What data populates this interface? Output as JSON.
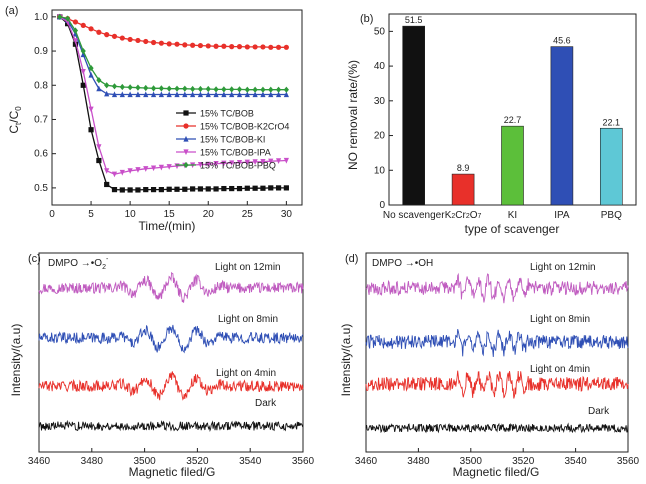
{
  "chart_data": [
    {
      "panel": "(a)",
      "type": "line",
      "xlabel": "Time/(min)",
      "ylabel": "C/C0",
      "ylabel_main": "C",
      "ylabel_sub1": "t",
      "ylabel_mid": "/C",
      "ylabel_sub2": "0",
      "xlim": [
        0,
        32
      ],
      "ylim": [
        0.45,
        1.02
      ],
      "xticks": [
        "0",
        "5",
        "10",
        "15",
        "20",
        "25",
        "30"
      ],
      "yticks": [
        "0.5",
        "0.6",
        "0.7",
        "0.8",
        "0.9",
        "1.0"
      ],
      "series": [
        {
          "name": "15% TC/BOB",
          "color": "#111111",
          "marker": "square",
          "x": [
            1,
            2,
            3,
            4,
            5,
            6,
            7,
            8,
            9,
            10,
            11,
            12,
            13,
            14,
            15,
            16,
            17,
            18,
            19,
            20,
            21,
            22,
            23,
            24,
            25,
            26,
            27,
            28,
            29,
            30
          ],
          "y": [
            1.0,
            0.98,
            0.92,
            0.8,
            0.67,
            0.58,
            0.51,
            0.495,
            0.494,
            0.494,
            0.494,
            0.495,
            0.495,
            0.495,
            0.496,
            0.496,
            0.496,
            0.497,
            0.497,
            0.497,
            0.497,
            0.498,
            0.498,
            0.498,
            0.499,
            0.499,
            0.499,
            0.5,
            0.5,
            0.5
          ]
        },
        {
          "name": "15% TC/BOB-K2CrO4",
          "color": "#e8302a",
          "marker": "circle",
          "x": [
            1,
            2,
            3,
            4,
            5,
            6,
            7,
            8,
            9,
            10,
            11,
            12,
            13,
            14,
            15,
            16,
            17,
            18,
            19,
            20,
            21,
            22,
            23,
            24,
            25,
            26,
            27,
            28,
            29,
            30
          ],
          "y": [
            1.0,
            0.995,
            0.985,
            0.975,
            0.965,
            0.955,
            0.948,
            0.943,
            0.938,
            0.934,
            0.931,
            0.928,
            0.925,
            0.923,
            0.921,
            0.92,
            0.918,
            0.917,
            0.916,
            0.915,
            0.914,
            0.914,
            0.913,
            0.913,
            0.912,
            0.912,
            0.912,
            0.911,
            0.911,
            0.911
          ]
        },
        {
          "name": "15% TC/BOB-KI",
          "color": "#2f4fb5",
          "marker": "triangle-up",
          "x": [
            1,
            2,
            3,
            4,
            5,
            6,
            7,
            8,
            9,
            10,
            11,
            12,
            13,
            14,
            15,
            16,
            17,
            18,
            19,
            20,
            21,
            22,
            23,
            24,
            25,
            26,
            27,
            28,
            29,
            30
          ],
          "y": [
            1.0,
            0.99,
            0.95,
            0.89,
            0.83,
            0.79,
            0.775,
            0.773,
            0.773,
            0.773,
            0.773,
            0.773,
            0.773,
            0.773,
            0.773,
            0.773,
            0.773,
            0.773,
            0.773,
            0.773,
            0.773,
            0.773,
            0.773,
            0.773,
            0.773,
            0.773,
            0.773,
            0.773,
            0.773,
            0.773
          ]
        },
        {
          "name": "15% TC/BOB-IPA",
          "color": "#c94fc9",
          "marker": "triangle-down",
          "x": [
            1,
            2,
            3,
            4,
            5,
            6,
            7,
            8,
            9,
            10,
            11,
            12,
            13,
            14,
            15,
            16,
            17,
            18,
            19,
            20,
            21,
            22,
            23,
            24,
            25,
            26,
            27,
            28,
            29,
            30
          ],
          "y": [
            1.0,
            0.985,
            0.93,
            0.84,
            0.73,
            0.62,
            0.55,
            0.54,
            0.545,
            0.55,
            0.553,
            0.556,
            0.558,
            0.56,
            0.562,
            0.564,
            0.566,
            0.567,
            0.568,
            0.569,
            0.571,
            0.572,
            0.573,
            0.574,
            0.575,
            0.576,
            0.577,
            0.578,
            0.579,
            0.58
          ]
        },
        {
          "name": "15% TC/BOB-PBQ",
          "color": "#2e9a3a",
          "marker": "diamond",
          "x": [
            1,
            2,
            3,
            4,
            5,
            6,
            7,
            8,
            9,
            10,
            11,
            12,
            13,
            14,
            15,
            16,
            17,
            18,
            19,
            20,
            21,
            22,
            23,
            24,
            25,
            26,
            27,
            28,
            29,
            30
          ],
          "y": [
            1.0,
            0.995,
            0.96,
            0.9,
            0.85,
            0.815,
            0.8,
            0.797,
            0.795,
            0.794,
            0.793,
            0.792,
            0.791,
            0.791,
            0.79,
            0.79,
            0.79,
            0.789,
            0.789,
            0.789,
            0.788,
            0.788,
            0.788,
            0.788,
            0.787,
            0.787,
            0.787,
            0.787,
            0.787,
            0.787
          ]
        }
      ]
    },
    {
      "panel": "(b)",
      "type": "bar",
      "ylabel": "NO removal rate/(%)",
      "xlabel": "type of scavenger",
      "ylim": [
        0,
        55
      ],
      "yticks": [
        "0",
        "10",
        "20",
        "30",
        "40",
        "50"
      ],
      "categories": [
        "No scavenger",
        "K2Cr2O7",
        "KI",
        "IPA",
        "PBQ"
      ],
      "values": [
        51.5,
        8.9,
        22.7,
        45.6,
        22.1
      ],
      "value_labels": [
        "51.5",
        "8.9",
        "22.7",
        "45.6",
        "22.1"
      ],
      "colors": [
        "#111111",
        "#e8302a",
        "#5cbf3a",
        "#2f4fb5",
        "#5ec8d6"
      ]
    },
    {
      "panel": "(c)",
      "type": "line",
      "annotation": "DMPO →•O",
      "annotation_sub": "2",
      "annotation_sup": "-",
      "xlabel": "Magnetic filed/G",
      "ylabel": "Intensity/(a.u)",
      "xlim": [
        3460,
        3560
      ],
      "xticks": [
        "3460",
        "3480",
        "3500",
        "3520",
        "3540",
        "3560"
      ],
      "series": [
        {
          "name": "Light on 12min",
          "color": "#c05cc0",
          "offset": 3
        },
        {
          "name": "Light on 8min",
          "color": "#2f4fb5",
          "offset": 2
        },
        {
          "name": "Light on 4min",
          "color": "#e8302a",
          "offset": 1
        },
        {
          "name": "Dark",
          "color": "#111111",
          "offset": 0
        }
      ]
    },
    {
      "panel": "(d)",
      "type": "line",
      "annotation": "DMPO →•OH",
      "xlabel": "Magnetic filed/G",
      "ylabel": "Intensity/(a.u)",
      "xlim": [
        3460,
        3560
      ],
      "xticks": [
        "3460",
        "3480",
        "3500",
        "3520",
        "3540",
        "3560"
      ],
      "series": [
        {
          "name": "Light on 12min",
          "color": "#c05cc0",
          "offset": 3
        },
        {
          "name": "Light on 8min",
          "color": "#2f4fb5",
          "offset": 2
        },
        {
          "name": "Light on 4min",
          "color": "#e8302a",
          "offset": 1
        },
        {
          "name": "Dark",
          "color": "#111111",
          "offset": 0
        }
      ]
    }
  ]
}
